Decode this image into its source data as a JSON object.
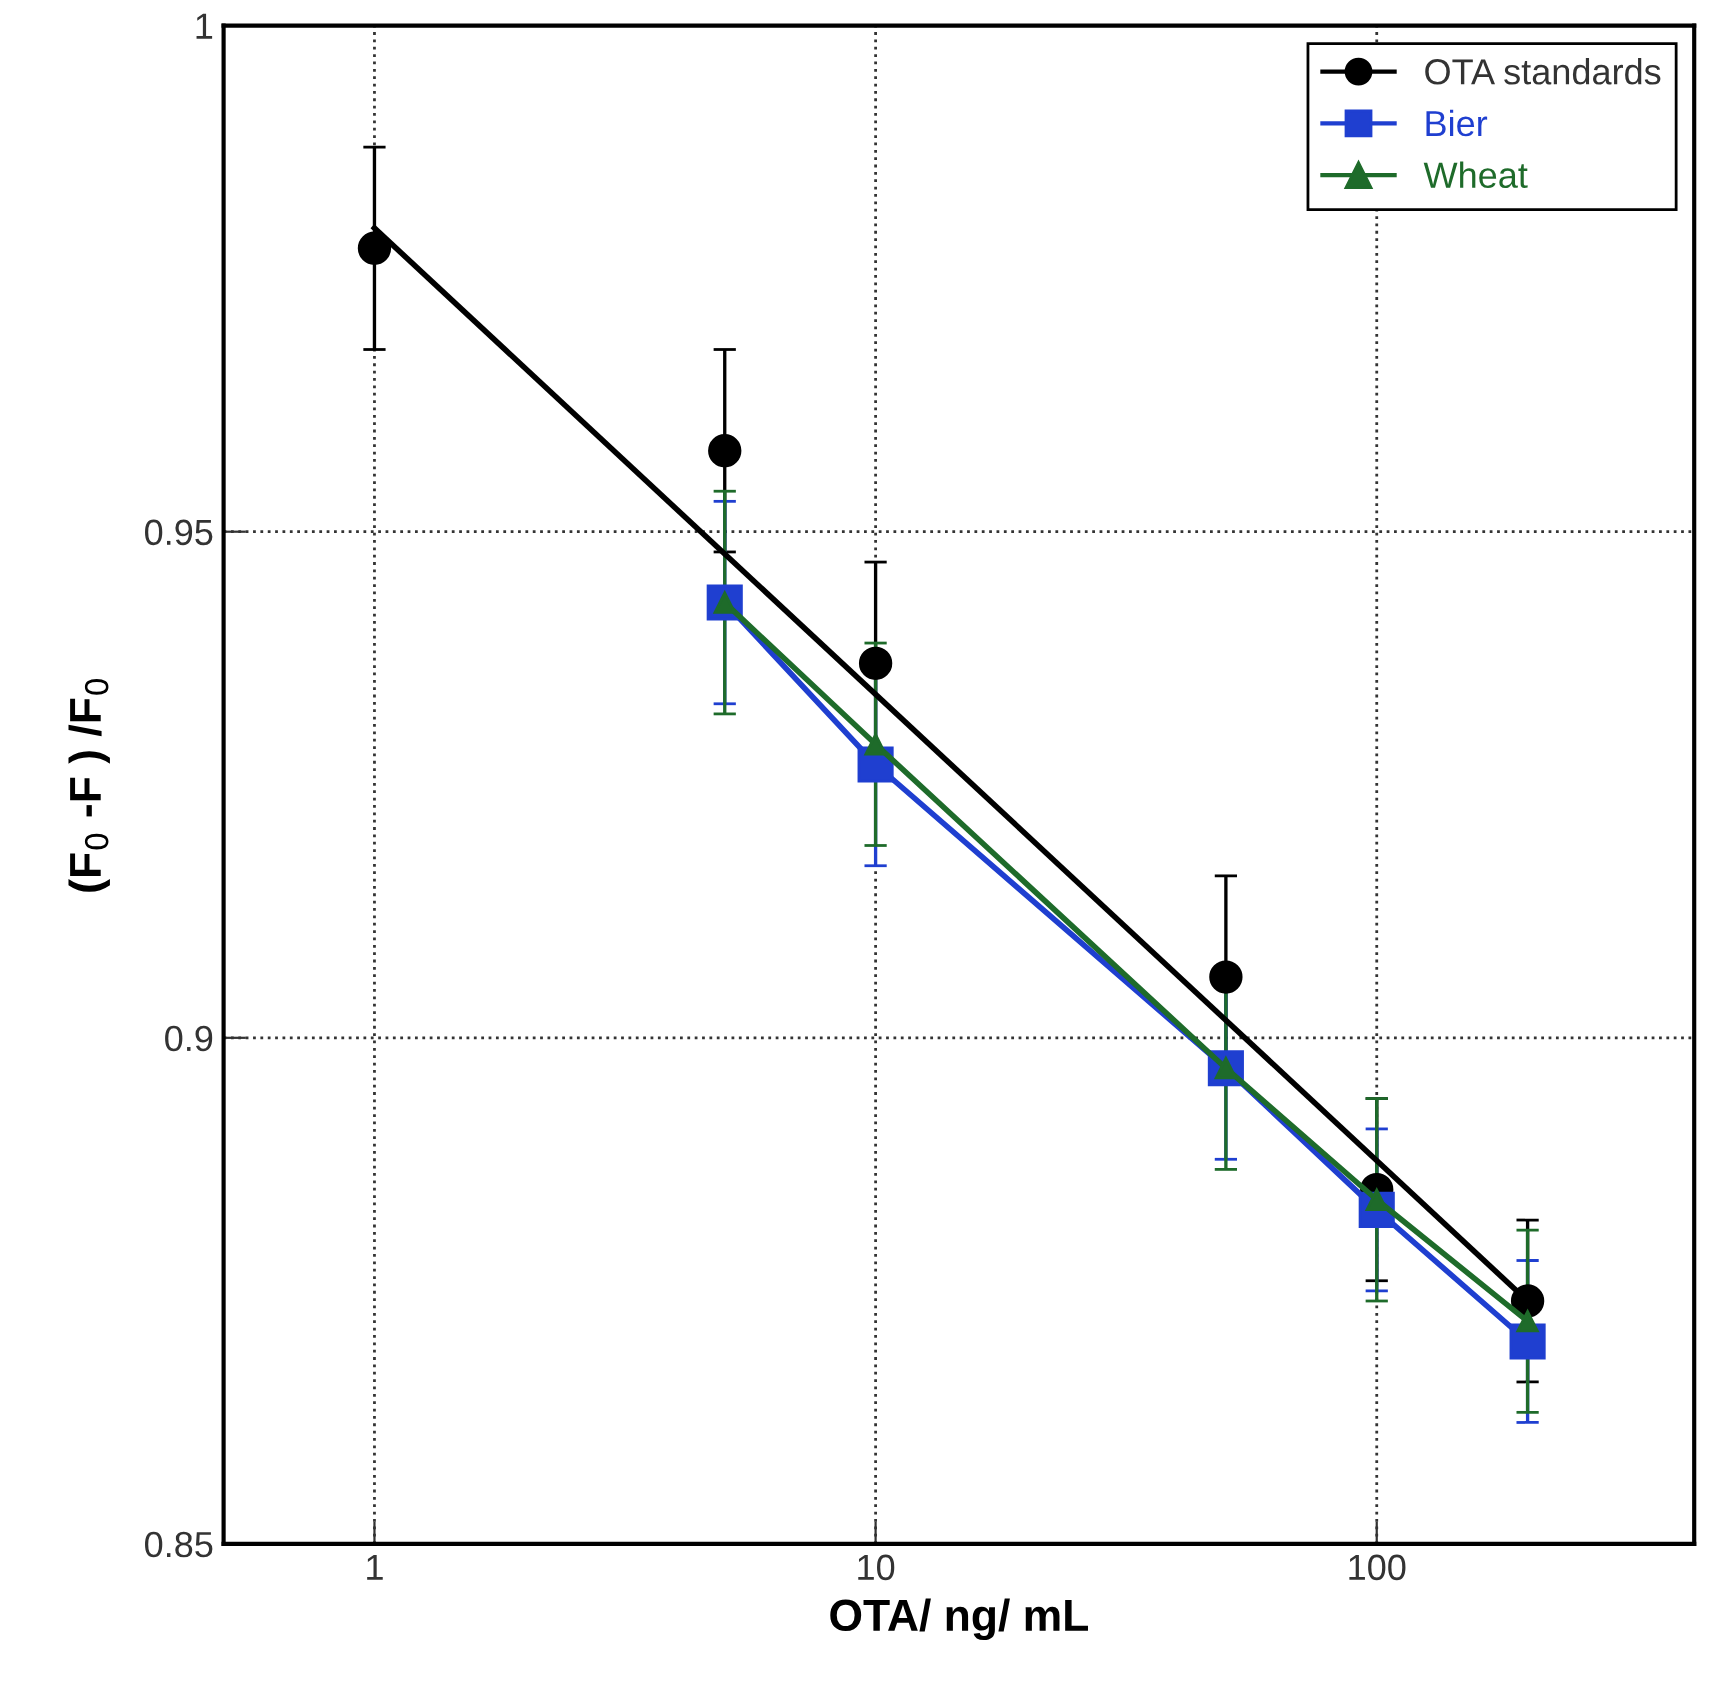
{
  "chart_data": {
    "type": "line",
    "xlabel": "OTA/ ng/ mL",
    "ylabel": "(F$_{0}$ -F ) /F$_{0}$",
    "log": "x",
    "xlim": [
      0.5,
      430
    ],
    "xticks": [
      1,
      10,
      100
    ],
    "ylim": [
      0.85,
      1
    ],
    "yticks": [
      0.85,
      0.9,
      0.95,
      1
    ],
    "grid": true,
    "legend": "top right",
    "series": [
      {
        "name": "OTA standards",
        "type": "scatter",
        "color": "#000000",
        "marker": "circle",
        "x": [
          1,
          5,
          10,
          50,
          100,
          200
        ],
        "values": [
          0.978,
          0.958,
          0.937,
          0.906,
          0.885,
          0.874
        ],
        "errors": [
          0.01,
          0.01,
          0.01,
          0.01,
          0.009,
          0.008
        ]
      },
      {
        "type": "line",
        "color": "#000000",
        "marker": "none",
        "x": [
          1,
          200
        ],
        "values": [
          0.98,
          0.874
        ]
      },
      {
        "name": "Bier",
        "color": "#1f3fd0",
        "marker": "square",
        "x": [
          5,
          10,
          50,
          100,
          200
        ],
        "values": [
          0.943,
          0.927,
          0.897,
          0.883,
          0.87
        ],
        "errors": [
          0.01,
          0.01,
          0.009,
          0.008,
          0.008
        ]
      },
      {
        "name": "Wheat",
        "color": "#1e6b2a",
        "marker": "triangle",
        "x": [
          5,
          10,
          50,
          100,
          200
        ],
        "values": [
          0.943,
          0.929,
          0.897,
          0.884,
          0.872
        ],
        "errors": [
          0.011,
          0.01,
          0.01,
          0.01,
          0.009
        ]
      }
    ]
  }
}
